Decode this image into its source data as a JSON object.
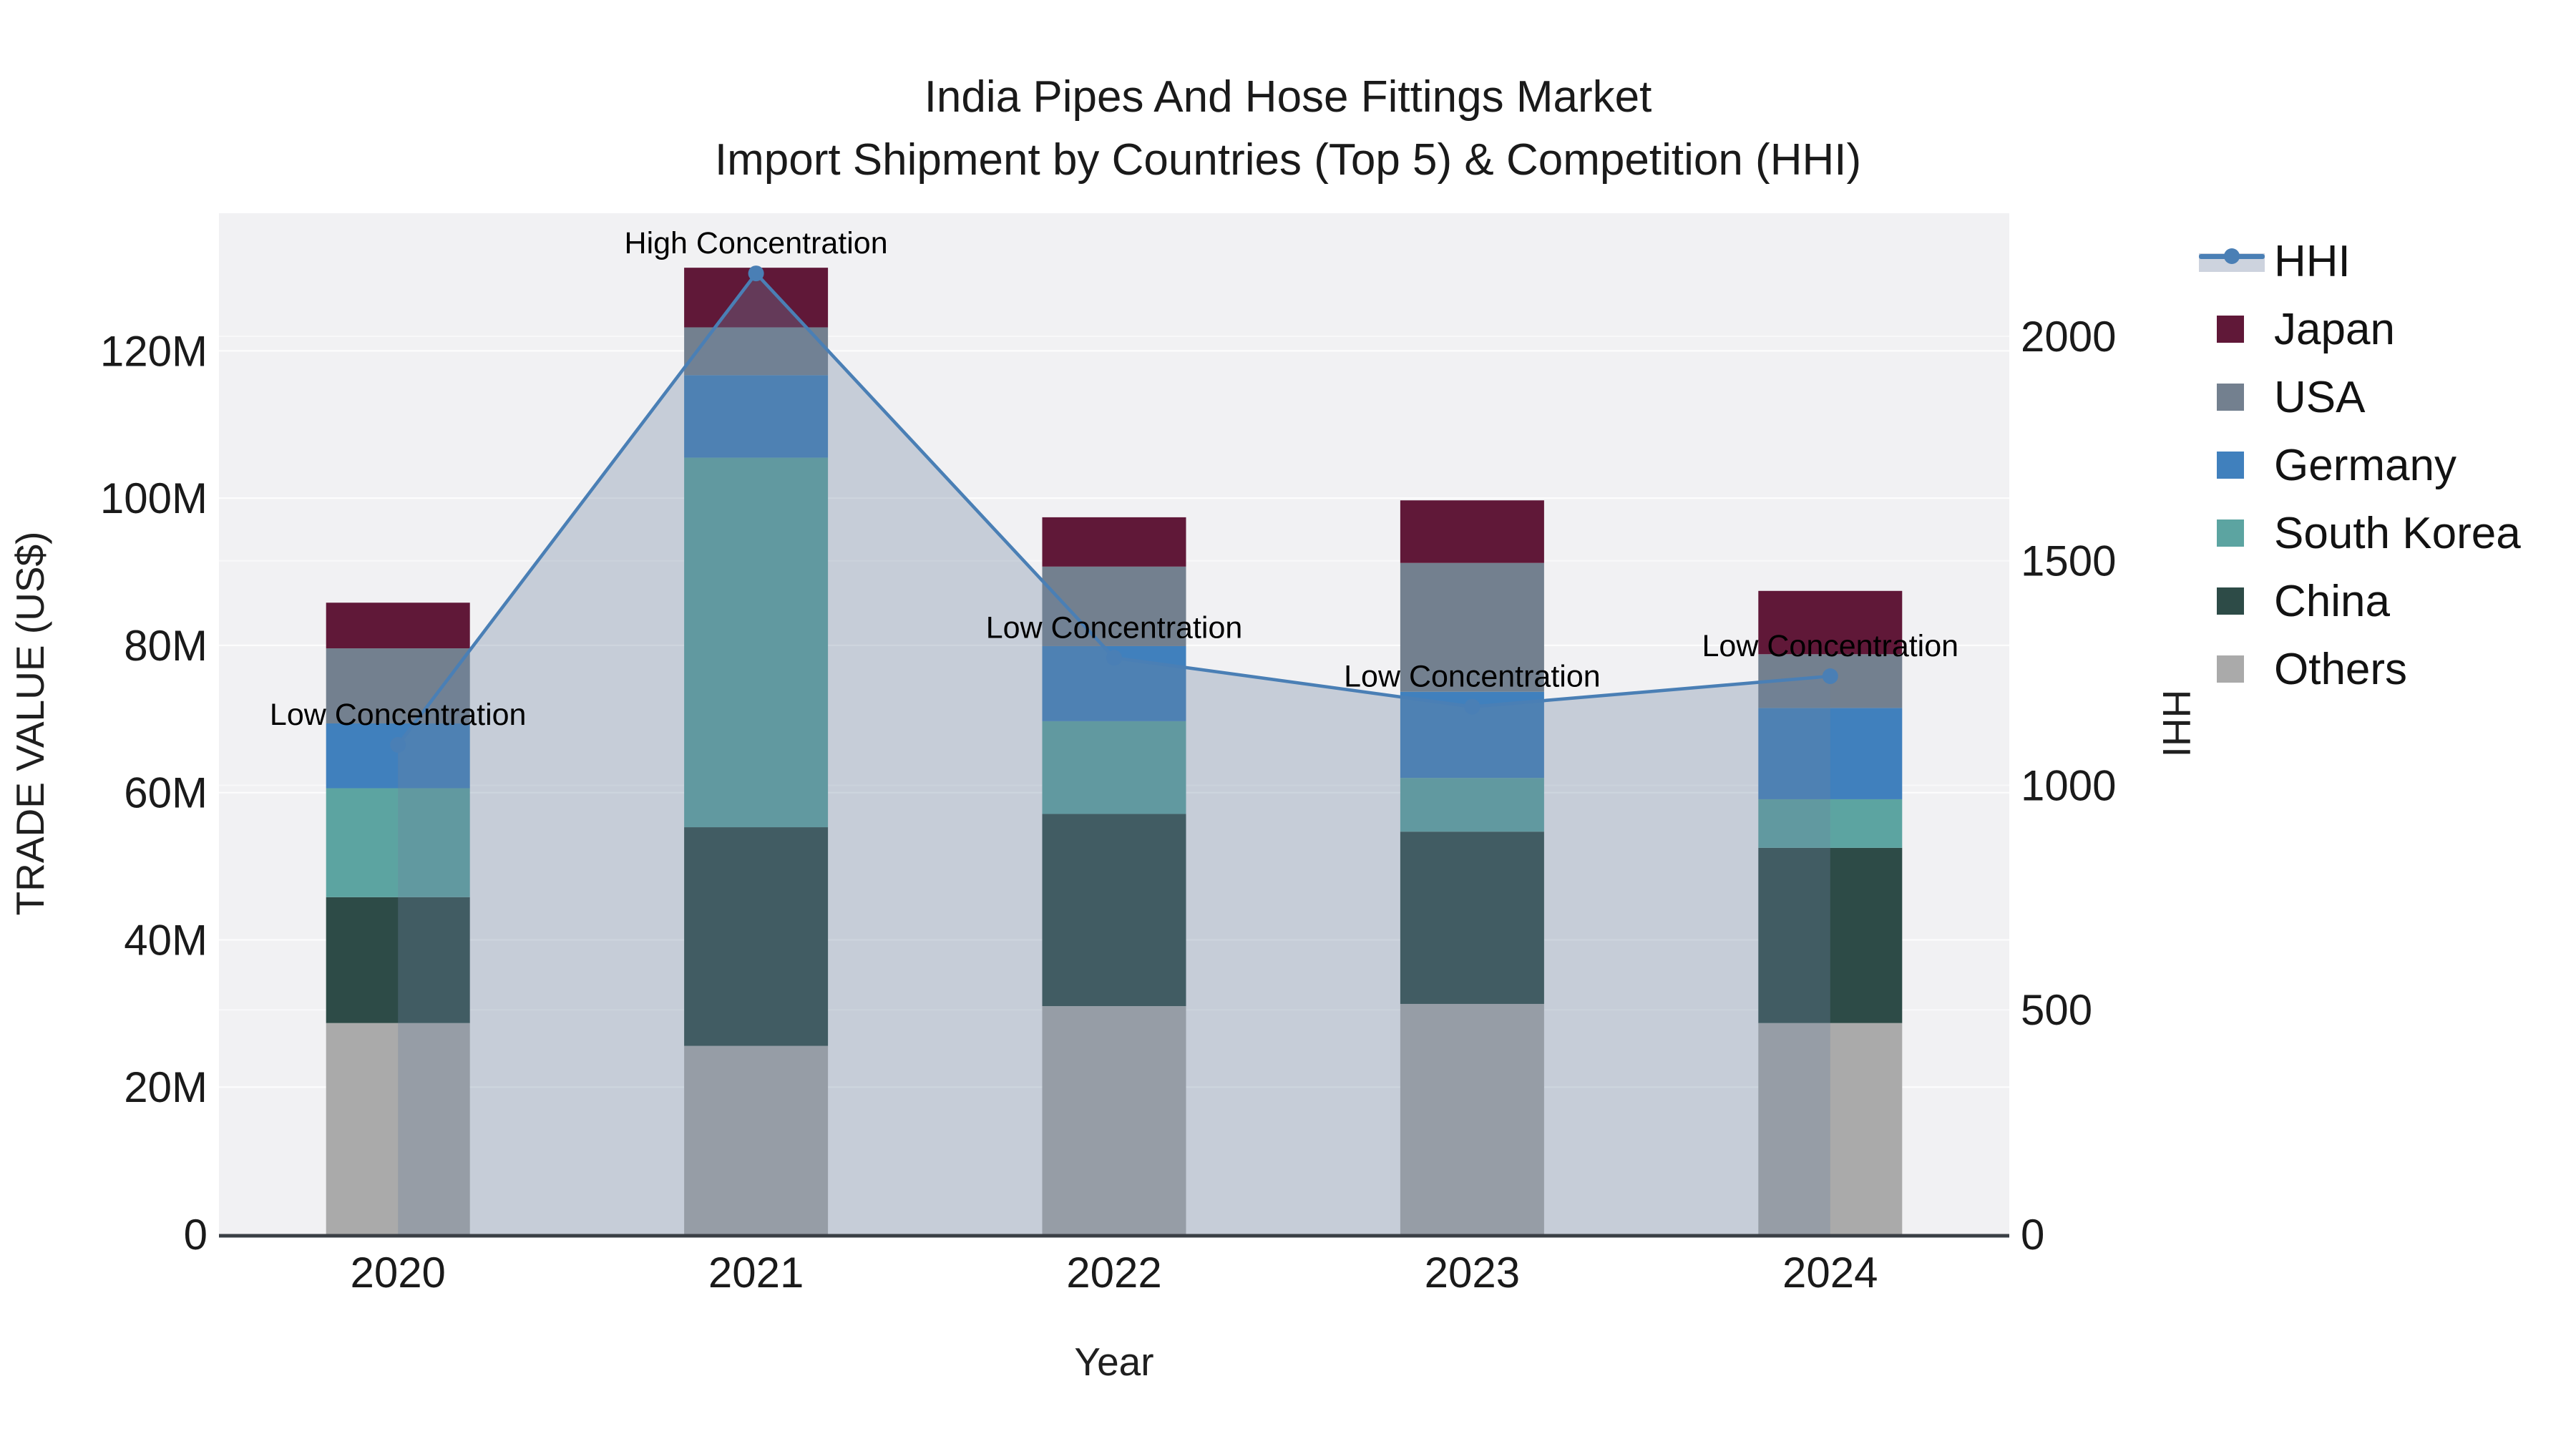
{
  "title": {
    "line1": "India Pipes And Hose Fittings Market",
    "line2": "Import Shipment by Countries (Top 5) & Competition (HHI)"
  },
  "axes": {
    "x": {
      "title": "Year",
      "tick_labels": [
        "2020",
        "2021",
        "2022",
        "2023",
        "2024"
      ]
    },
    "y_left": {
      "title": "TRADE VALUE (US$)",
      "tick_labels": [
        "0",
        "20M",
        "40M",
        "60M",
        "80M",
        "100M",
        "120M"
      ],
      "tick_values_musd": [
        0,
        20,
        40,
        60,
        80,
        100,
        120
      ],
      "range_musd": [
        0,
        138.7
      ]
    },
    "y_right": {
      "title": "HHI",
      "tick_labels": [
        "0",
        "500",
        "1000",
        "1500",
        "2000"
      ],
      "tick_values": [
        0,
        500,
        1000,
        1500,
        2000
      ],
      "range": [
        0,
        2274
      ]
    }
  },
  "legend": {
    "items": [
      {
        "label": "HHI",
        "swatch": "line",
        "color": "#4A7FB5",
        "band_color": "#CDD3DE"
      },
      {
        "label": "Japan",
        "swatch": "square",
        "color": "#601838"
      },
      {
        "label": "USA",
        "swatch": "square",
        "color": "#73808F"
      },
      {
        "label": "Germany",
        "swatch": "square",
        "color": "#4080BD"
      },
      {
        "label": "South Korea",
        "swatch": "square",
        "color": "#5CA4A1"
      },
      {
        "label": "China",
        "swatch": "square",
        "color": "#2D4B47"
      },
      {
        "label": "Others",
        "swatch": "square",
        "color": "#AAAAAA"
      }
    ]
  },
  "chart_data": {
    "type": "bar",
    "stacked": true,
    "title": "India Pipes And Hose Fittings Market - Import Shipment by Countries (Top 5) & Competition (HHI)",
    "categories": [
      "2020",
      "2021",
      "2022",
      "2023",
      "2024"
    ],
    "value_unit": "million US$",
    "series": [
      {
        "name": "Others",
        "color": "#AAAAAA",
        "values": [
          28.7,
          25.6,
          31.0,
          31.3,
          28.7
        ]
      },
      {
        "name": "China",
        "color": "#2D4B47",
        "values": [
          17.1,
          29.7,
          26.1,
          23.4,
          23.8
        ]
      },
      {
        "name": "South Korea",
        "color": "#5CA4A1",
        "values": [
          14.8,
          50.2,
          12.6,
          7.3,
          6.6
        ]
      },
      {
        "name": "Germany",
        "color": "#4080BD",
        "values": [
          8.8,
          11.2,
          10.2,
          11.7,
          12.4
        ]
      },
      {
        "name": "USA",
        "color": "#73808F",
        "values": [
          10.2,
          6.5,
          10.8,
          17.5,
          7.3
        ]
      },
      {
        "name": "Japan",
        "color": "#601838",
        "values": [
          6.2,
          8.1,
          6.7,
          8.5,
          8.6
        ]
      }
    ],
    "totals_musd": [
      85.8,
      131.3,
      97.4,
      99.7,
      87.4
    ],
    "line_series": {
      "name": "HHI",
      "axis": "right",
      "color": "#4A7FB5",
      "fill": "rgba(110,130,160,0.32)",
      "values": [
        1090,
        2140,
        1284,
        1175,
        1243
      ]
    },
    "annotations": [
      {
        "category": "2020",
        "text": "Low Concentration"
      },
      {
        "category": "2021",
        "text": "High Concentration"
      },
      {
        "category": "2022",
        "text": "Low Concentration"
      },
      {
        "category": "2023",
        "text": "Low Concentration"
      },
      {
        "category": "2024",
        "text": "Low Concentration"
      }
    ],
    "xlabel": "Year",
    "ylabel": "TRADE VALUE (US$)",
    "ylabel_right": "HHI",
    "ylim_left_musd": [
      0,
      138.7
    ],
    "ylim_right": [
      0,
      2274
    ],
    "grid": true,
    "legend_position": "right",
    "plot_bg_color": "#F1F1F3",
    "grid_color": "#FFFFFF",
    "x_axis_line_color": "#3A3F45"
  }
}
